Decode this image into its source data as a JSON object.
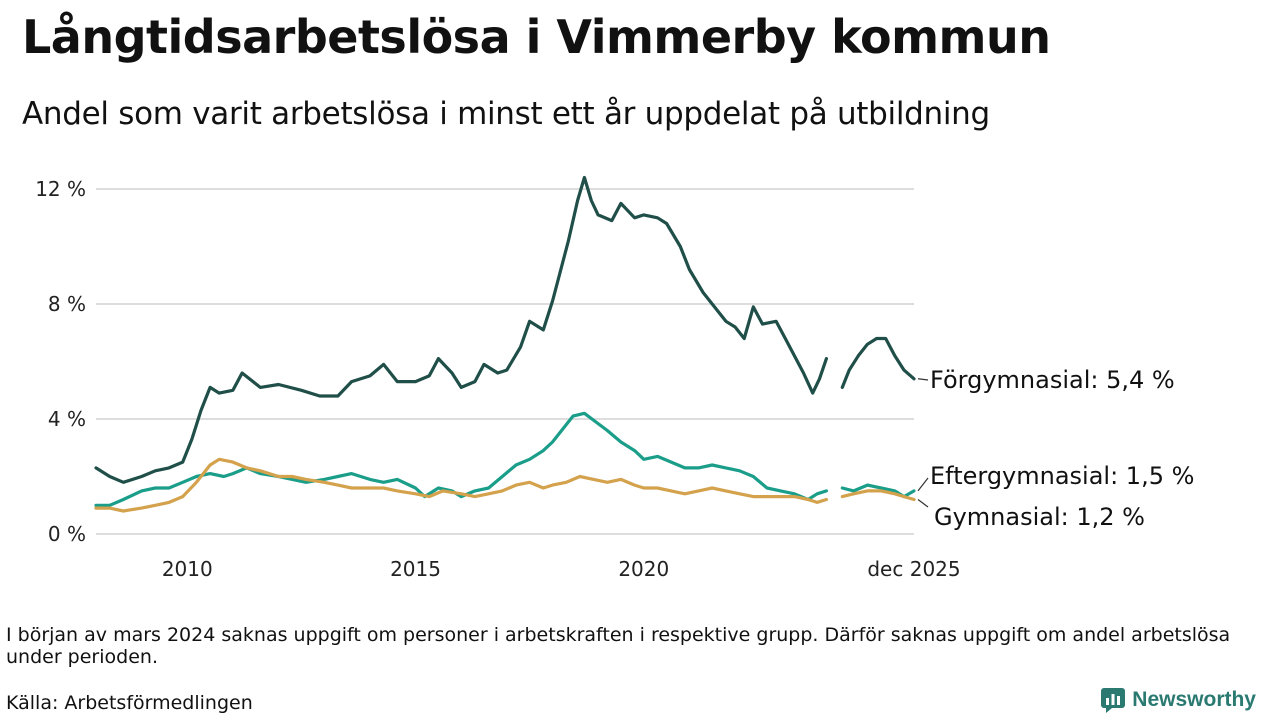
{
  "title": "Långtidsarbetslösa i Vimmerby kommun",
  "subtitle": "Andel som varit arbetslösa i minst ett år uppdelat på utbildning",
  "note": "I början av mars 2024 saknas uppgift om personer i arbetskraften i respektive grupp. Därför saknas uppgift om andel arbetslösa under perioden.",
  "source": "Källa: Arbetsförmedlingen",
  "brand": "Newsworthy",
  "colors": {
    "forgymnasial": "#1f4f48",
    "eftergymnasial": "#1a9e8a",
    "gymnasial": "#d4a24c",
    "grid": "#dddddd",
    "brand": "#2a7a72"
  },
  "chart_data": {
    "type": "line",
    "title": "Långtidsarbetslösa i Vimmerby kommun",
    "xlabel": "",
    "ylabel": "",
    "xlim": [
      2008.0,
      2025.92
    ],
    "ylim": [
      0,
      12.6
    ],
    "yticks": [
      0,
      4,
      8,
      12
    ],
    "ytick_labels": [
      "0 %",
      "4 %",
      "8 %",
      "12 %"
    ],
    "xticks": [
      2010,
      2015,
      2020,
      2025.92
    ],
    "xtick_labels": [
      "2010",
      "2015",
      "2020",
      "dec 2025"
    ],
    "grid": true,
    "gap": [
      2024.0,
      2024.35
    ],
    "series": [
      {
        "name": "Förgymnasial",
        "label": "Förgymnasial: 5,4 %",
        "color_key": "forgymnasial",
        "points": [
          [
            2008.0,
            2.3
          ],
          [
            2008.3,
            2.0
          ],
          [
            2008.6,
            1.8
          ],
          [
            2009.0,
            2.0
          ],
          [
            2009.3,
            2.2
          ],
          [
            2009.6,
            2.3
          ],
          [
            2009.9,
            2.5
          ],
          [
            2010.1,
            3.3
          ],
          [
            2010.3,
            4.3
          ],
          [
            2010.5,
            5.1
          ],
          [
            2010.7,
            4.9
          ],
          [
            2011.0,
            5.0
          ],
          [
            2011.2,
            5.6
          ],
          [
            2011.6,
            5.1
          ],
          [
            2012.0,
            5.2
          ],
          [
            2012.5,
            5.0
          ],
          [
            2012.9,
            4.8
          ],
          [
            2013.3,
            4.8
          ],
          [
            2013.6,
            5.3
          ],
          [
            2014.0,
            5.5
          ],
          [
            2014.3,
            5.9
          ],
          [
            2014.6,
            5.3
          ],
          [
            2015.0,
            5.3
          ],
          [
            2015.3,
            5.5
          ],
          [
            2015.5,
            6.1
          ],
          [
            2015.8,
            5.6
          ],
          [
            2016.0,
            5.1
          ],
          [
            2016.3,
            5.3
          ],
          [
            2016.5,
            5.9
          ],
          [
            2016.8,
            5.6
          ],
          [
            2017.0,
            5.7
          ],
          [
            2017.3,
            6.5
          ],
          [
            2017.5,
            7.4
          ],
          [
            2017.8,
            7.1
          ],
          [
            2018.0,
            8.1
          ],
          [
            2018.2,
            9.3
          ],
          [
            2018.35,
            10.2
          ],
          [
            2018.55,
            11.6
          ],
          [
            2018.7,
            12.4
          ],
          [
            2018.85,
            11.6
          ],
          [
            2019.0,
            11.1
          ],
          [
            2019.3,
            10.9
          ],
          [
            2019.5,
            11.5
          ],
          [
            2019.8,
            11.0
          ],
          [
            2020.0,
            11.1
          ],
          [
            2020.3,
            11.0
          ],
          [
            2020.5,
            10.8
          ],
          [
            2020.8,
            10.0
          ],
          [
            2021.0,
            9.2
          ],
          [
            2021.3,
            8.4
          ],
          [
            2021.5,
            8.0
          ],
          [
            2021.8,
            7.4
          ],
          [
            2022.0,
            7.2
          ],
          [
            2022.2,
            6.8
          ],
          [
            2022.4,
            7.9
          ],
          [
            2022.6,
            7.3
          ],
          [
            2022.9,
            7.4
          ],
          [
            2023.1,
            6.8
          ],
          [
            2023.3,
            6.2
          ],
          [
            2023.5,
            5.6
          ],
          [
            2023.7,
            4.9
          ],
          [
            2023.85,
            5.4
          ],
          [
            2024.0,
            6.1
          ],
          [
            2024.35,
            5.1
          ],
          [
            2024.5,
            5.7
          ],
          [
            2024.7,
            6.2
          ],
          [
            2024.9,
            6.6
          ],
          [
            2025.1,
            6.8
          ],
          [
            2025.3,
            6.8
          ],
          [
            2025.5,
            6.2
          ],
          [
            2025.7,
            5.7
          ],
          [
            2025.92,
            5.4
          ]
        ]
      },
      {
        "name": "Eftergymnasial",
        "label": "Eftergymnasial: 1,5 %",
        "color_key": "eftergymnasial",
        "points": [
          [
            2008.0,
            1.0
          ],
          [
            2008.3,
            1.0
          ],
          [
            2008.6,
            1.2
          ],
          [
            2009.0,
            1.5
          ],
          [
            2009.3,
            1.6
          ],
          [
            2009.6,
            1.6
          ],
          [
            2009.9,
            1.8
          ],
          [
            2010.2,
            2.0
          ],
          [
            2010.5,
            2.1
          ],
          [
            2010.8,
            2.0
          ],
          [
            2011.0,
            2.1
          ],
          [
            2011.3,
            2.3
          ],
          [
            2011.6,
            2.1
          ],
          [
            2012.0,
            2.0
          ],
          [
            2012.3,
            1.9
          ],
          [
            2012.6,
            1.8
          ],
          [
            2013.0,
            1.9
          ],
          [
            2013.3,
            2.0
          ],
          [
            2013.6,
            2.1
          ],
          [
            2014.0,
            1.9
          ],
          [
            2014.3,
            1.8
          ],
          [
            2014.6,
            1.9
          ],
          [
            2015.0,
            1.6
          ],
          [
            2015.2,
            1.3
          ],
          [
            2015.5,
            1.6
          ],
          [
            2015.8,
            1.5
          ],
          [
            2016.0,
            1.3
          ],
          [
            2016.3,
            1.5
          ],
          [
            2016.6,
            1.6
          ],
          [
            2016.9,
            2.0
          ],
          [
            2017.2,
            2.4
          ],
          [
            2017.5,
            2.6
          ],
          [
            2017.8,
            2.9
          ],
          [
            2018.0,
            3.2
          ],
          [
            2018.2,
            3.6
          ],
          [
            2018.45,
            4.1
          ],
          [
            2018.7,
            4.2
          ],
          [
            2018.95,
            3.9
          ],
          [
            2019.2,
            3.6
          ],
          [
            2019.5,
            3.2
          ],
          [
            2019.8,
            2.9
          ],
          [
            2020.0,
            2.6
          ],
          [
            2020.3,
            2.7
          ],
          [
            2020.6,
            2.5
          ],
          [
            2020.9,
            2.3
          ],
          [
            2021.2,
            2.3
          ],
          [
            2021.5,
            2.4
          ],
          [
            2021.8,
            2.3
          ],
          [
            2022.1,
            2.2
          ],
          [
            2022.4,
            2.0
          ],
          [
            2022.7,
            1.6
          ],
          [
            2023.0,
            1.5
          ],
          [
            2023.3,
            1.4
          ],
          [
            2023.6,
            1.2
          ],
          [
            2023.8,
            1.4
          ],
          [
            2024.0,
            1.5
          ],
          [
            2024.35,
            1.6
          ],
          [
            2024.6,
            1.5
          ],
          [
            2024.9,
            1.7
          ],
          [
            2025.2,
            1.6
          ],
          [
            2025.5,
            1.5
          ],
          [
            2025.7,
            1.3
          ],
          [
            2025.92,
            1.5
          ]
        ]
      },
      {
        "name": "Gymnasial",
        "label": "Gymnasial: 1,2 %",
        "color_key": "gymnasial",
        "points": [
          [
            2008.0,
            0.9
          ],
          [
            2008.3,
            0.9
          ],
          [
            2008.6,
            0.8
          ],
          [
            2009.0,
            0.9
          ],
          [
            2009.3,
            1.0
          ],
          [
            2009.6,
            1.1
          ],
          [
            2009.9,
            1.3
          ],
          [
            2010.2,
            1.8
          ],
          [
            2010.5,
            2.4
          ],
          [
            2010.7,
            2.6
          ],
          [
            2011.0,
            2.5
          ],
          [
            2011.3,
            2.3
          ],
          [
            2011.6,
            2.2
          ],
          [
            2012.0,
            2.0
          ],
          [
            2012.3,
            2.0
          ],
          [
            2012.6,
            1.9
          ],
          [
            2013.0,
            1.8
          ],
          [
            2013.3,
            1.7
          ],
          [
            2013.6,
            1.6
          ],
          [
            2014.0,
            1.6
          ],
          [
            2014.3,
            1.6
          ],
          [
            2014.6,
            1.5
          ],
          [
            2015.0,
            1.4
          ],
          [
            2015.3,
            1.3
          ],
          [
            2015.6,
            1.5
          ],
          [
            2016.0,
            1.4
          ],
          [
            2016.3,
            1.3
          ],
          [
            2016.6,
            1.4
          ],
          [
            2016.9,
            1.5
          ],
          [
            2017.2,
            1.7
          ],
          [
            2017.5,
            1.8
          ],
          [
            2017.8,
            1.6
          ],
          [
            2018.0,
            1.7
          ],
          [
            2018.3,
            1.8
          ],
          [
            2018.6,
            2.0
          ],
          [
            2018.9,
            1.9
          ],
          [
            2019.2,
            1.8
          ],
          [
            2019.5,
            1.9
          ],
          [
            2019.8,
            1.7
          ],
          [
            2020.0,
            1.6
          ],
          [
            2020.3,
            1.6
          ],
          [
            2020.6,
            1.5
          ],
          [
            2020.9,
            1.4
          ],
          [
            2021.2,
            1.5
          ],
          [
            2021.5,
            1.6
          ],
          [
            2021.8,
            1.5
          ],
          [
            2022.1,
            1.4
          ],
          [
            2022.4,
            1.3
          ],
          [
            2022.7,
            1.3
          ],
          [
            2023.0,
            1.3
          ],
          [
            2023.3,
            1.3
          ],
          [
            2023.6,
            1.2
          ],
          [
            2023.8,
            1.1
          ],
          [
            2024.0,
            1.2
          ],
          [
            2024.35,
            1.3
          ],
          [
            2024.6,
            1.4
          ],
          [
            2024.9,
            1.5
          ],
          [
            2025.2,
            1.5
          ],
          [
            2025.5,
            1.4
          ],
          [
            2025.7,
            1.3
          ],
          [
            2025.92,
            1.2
          ]
        ]
      }
    ]
  }
}
